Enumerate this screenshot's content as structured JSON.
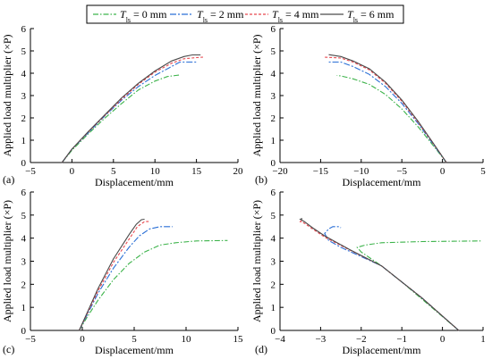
{
  "legend": {
    "symbol": "T",
    "subscript": "ls",
    "items": [
      {
        "value_text": " = 0 mm",
        "color": "#3cb34a",
        "dash": "6,2,1.5,2"
      },
      {
        "value_text": " = 2 mm",
        "color": "#2a6fd6",
        "dash": "7,2,2,2"
      },
      {
        "value_text": " = 4 mm",
        "color": "#e8474e",
        "dash": "3,2"
      },
      {
        "value_text": " = 6 mm",
        "color": "#4a4a4a",
        "dash": ""
      }
    ]
  },
  "ylabel": "Applied load multiplier (×P)",
  "xlabel": "Displacement/mm",
  "chart_data": [
    {
      "panel": "(a)",
      "type": "line",
      "xlim": [
        -5,
        20
      ],
      "ylim": [
        0,
        6
      ],
      "xticks": [
        -5,
        0,
        5,
        10,
        15,
        20
      ],
      "yticks": [
        0,
        1,
        2,
        3,
        4,
        5,
        6
      ],
      "xlabel": "Displacement/mm",
      "ylabel": "Applied load multiplier (×P)",
      "series": [
        {
          "points": [
            [
              -1.2,
              0
            ],
            [
              0,
              0.55
            ],
            [
              2,
              1.3
            ],
            [
              4,
              2.0
            ],
            [
              6,
              2.65
            ],
            [
              8,
              3.25
            ],
            [
              10,
              3.65
            ],
            [
              11.5,
              3.85
            ],
            [
              12.5,
              3.9
            ],
            [
              13,
              3.92
            ]
          ]
        },
        {
          "points": [
            [
              -1.2,
              0
            ],
            [
              0,
              0.6
            ],
            [
              2,
              1.35
            ],
            [
              4,
              2.1
            ],
            [
              6,
              2.8
            ],
            [
              8,
              3.4
            ],
            [
              10,
              3.9
            ],
            [
              12,
              4.3
            ],
            [
              13,
              4.5
            ],
            [
              14,
              4.5
            ],
            [
              15,
              4.5
            ]
          ]
        },
        {
          "points": [
            [
              -1.2,
              0
            ],
            [
              0,
              0.6
            ],
            [
              2,
              1.38
            ],
            [
              4,
              2.12
            ],
            [
              6,
              2.85
            ],
            [
              8,
              3.5
            ],
            [
              10,
              4.05
            ],
            [
              12,
              4.45
            ],
            [
              13.5,
              4.65
            ],
            [
              15,
              4.7
            ],
            [
              15.8,
              4.72
            ]
          ]
        },
        {
          "points": [
            [
              -1.2,
              0
            ],
            [
              0,
              0.6
            ],
            [
              2,
              1.4
            ],
            [
              4,
              2.15
            ],
            [
              6,
              2.9
            ],
            [
              8,
              3.55
            ],
            [
              10,
              4.1
            ],
            [
              12,
              4.55
            ],
            [
              13.5,
              4.75
            ],
            [
              14.5,
              4.82
            ],
            [
              15.5,
              4.82
            ]
          ]
        }
      ]
    },
    {
      "panel": "(b)",
      "type": "line",
      "xlim": [
        -20,
        5
      ],
      "ylim": [
        0,
        6
      ],
      "xticks": [
        -20,
        -15,
        -10,
        -5,
        0,
        5
      ],
      "yticks": [
        0,
        1,
        2,
        3,
        4,
        5,
        6
      ],
      "xlabel": "Displacement/mm",
      "ylabel": "Applied load multiplier (×P)",
      "series": [
        {
          "points": [
            [
              0.5,
              0
            ],
            [
              -1,
              0.7
            ],
            [
              -3,
              1.6
            ],
            [
              -5,
              2.4
            ],
            [
              -7,
              3.05
            ],
            [
              -9,
              3.5
            ],
            [
              -11,
              3.75
            ],
            [
              -12.5,
              3.88
            ],
            [
              -13,
              3.9
            ]
          ]
        },
        {
          "points": [
            [
              0.5,
              0
            ],
            [
              -1,
              0.75
            ],
            [
              -3,
              1.75
            ],
            [
              -5,
              2.65
            ],
            [
              -7,
              3.4
            ],
            [
              -9,
              3.95
            ],
            [
              -11,
              4.3
            ],
            [
              -12.5,
              4.5
            ],
            [
              -14,
              4.5
            ]
          ]
        },
        {
          "points": [
            [
              0.5,
              0
            ],
            [
              -1,
              0.78
            ],
            [
              -3,
              1.8
            ],
            [
              -5,
              2.75
            ],
            [
              -7,
              3.55
            ],
            [
              -9,
              4.15
            ],
            [
              -11,
              4.5
            ],
            [
              -12.5,
              4.68
            ],
            [
              -14.5,
              4.72
            ]
          ]
        },
        {
          "points": [
            [
              0.5,
              0
            ],
            [
              -1,
              0.8
            ],
            [
              -3,
              1.85
            ],
            [
              -5,
              2.8
            ],
            [
              -7,
              3.6
            ],
            [
              -9,
              4.2
            ],
            [
              -11,
              4.55
            ],
            [
              -12.5,
              4.75
            ],
            [
              -14,
              4.83
            ]
          ]
        }
      ]
    },
    {
      "panel": "(c)",
      "type": "line",
      "xlim": [
        -5,
        15
      ],
      "ylim": [
        0,
        6
      ],
      "xticks": [
        -5,
        0,
        5,
        10,
        15
      ],
      "yticks": [
        0,
        1,
        2,
        3,
        4,
        5,
        6
      ],
      "xlabel": "Displacement/mm",
      "ylabel": "Applied load multiplier (×P)",
      "series": [
        {
          "points": [
            [
              -0.3,
              0
            ],
            [
              0.5,
              0.6
            ],
            [
              1.5,
              1.3
            ],
            [
              3,
              2.2
            ],
            [
              4.5,
              2.9
            ],
            [
              6,
              3.4
            ],
            [
              7.5,
              3.7
            ],
            [
              9,
              3.8
            ],
            [
              11,
              3.88
            ],
            [
              14,
              3.9
            ]
          ]
        },
        {
          "points": [
            [
              -0.3,
              0
            ],
            [
              0.5,
              0.7
            ],
            [
              1.5,
              1.6
            ],
            [
              3,
              2.7
            ],
            [
              4.5,
              3.6
            ],
            [
              5.5,
              4.1
            ],
            [
              6.5,
              4.4
            ],
            [
              7.5,
              4.5
            ],
            [
              8.7,
              4.5
            ]
          ]
        },
        {
          "points": [
            [
              -0.3,
              0
            ],
            [
              0.5,
              0.75
            ],
            [
              1.5,
              1.7
            ],
            [
              3,
              2.95
            ],
            [
              4.5,
              3.95
            ],
            [
              5.3,
              4.5
            ],
            [
              6,
              4.72
            ],
            [
              6.4,
              4.72
            ]
          ]
        },
        {
          "points": [
            [
              -0.3,
              0
            ],
            [
              0.5,
              0.8
            ],
            [
              1.5,
              1.8
            ],
            [
              3,
              3.1
            ],
            [
              4.5,
              4.15
            ],
            [
              5.2,
              4.6
            ],
            [
              5.7,
              4.8
            ],
            [
              6,
              4.82
            ]
          ]
        }
      ]
    },
    {
      "panel": "(d)",
      "type": "line",
      "xlim": [
        -4,
        1
      ],
      "ylim": [
        0,
        6
      ],
      "xticks": [
        -4,
        -3,
        -2,
        -1,
        0,
        1
      ],
      "yticks": [
        0,
        1,
        2,
        3,
        4,
        5,
        6
      ],
      "xlabel": "Displacement/mm",
      "ylabel": "Applied load multiplier (×P)",
      "series": [
        {
          "points": [
            [
              0.4,
              0
            ],
            [
              0,
              0.6
            ],
            [
              -0.5,
              1.35
            ],
            [
              -1,
              2.1
            ],
            [
              -1.5,
              2.8
            ],
            [
              -2,
              3.4
            ],
            [
              -2.1,
              3.6
            ],
            [
              -1.9,
              3.7
            ],
            [
              -1.5,
              3.8
            ],
            [
              -0.5,
              3.85
            ],
            [
              0.95,
              3.88
            ]
          ]
        },
        {
          "points": [
            [
              0.4,
              0
            ],
            [
              -0.5,
              1.4
            ],
            [
              -1.5,
              2.8
            ],
            [
              -2.5,
              3.6
            ],
            [
              -2.8,
              3.9
            ],
            [
              -2.9,
              4.2
            ],
            [
              -2.8,
              4.4
            ],
            [
              -2.7,
              4.5
            ],
            [
              -2.55,
              4.5
            ],
            [
              -2.5,
              4.45
            ]
          ]
        },
        {
          "points": [
            [
              0.4,
              0
            ],
            [
              -0.5,
              1.4
            ],
            [
              -1.5,
              2.8
            ],
            [
              -2.3,
              3.5
            ],
            [
              -2.9,
              4.05
            ],
            [
              -3.2,
              4.4
            ],
            [
              -3.4,
              4.65
            ],
            [
              -3.5,
              4.72
            ],
            [
              -3.45,
              4.78
            ]
          ]
        },
        {
          "points": [
            [
              0.4,
              0
            ],
            [
              -0.5,
              1.4
            ],
            [
              -1.5,
              2.8
            ],
            [
              -2.3,
              3.52
            ],
            [
              -2.9,
              4.1
            ],
            [
              -3.2,
              4.45
            ],
            [
              -3.4,
              4.72
            ],
            [
              -3.5,
              4.82
            ],
            [
              -3.45,
              4.85
            ]
          ]
        }
      ]
    }
  ]
}
